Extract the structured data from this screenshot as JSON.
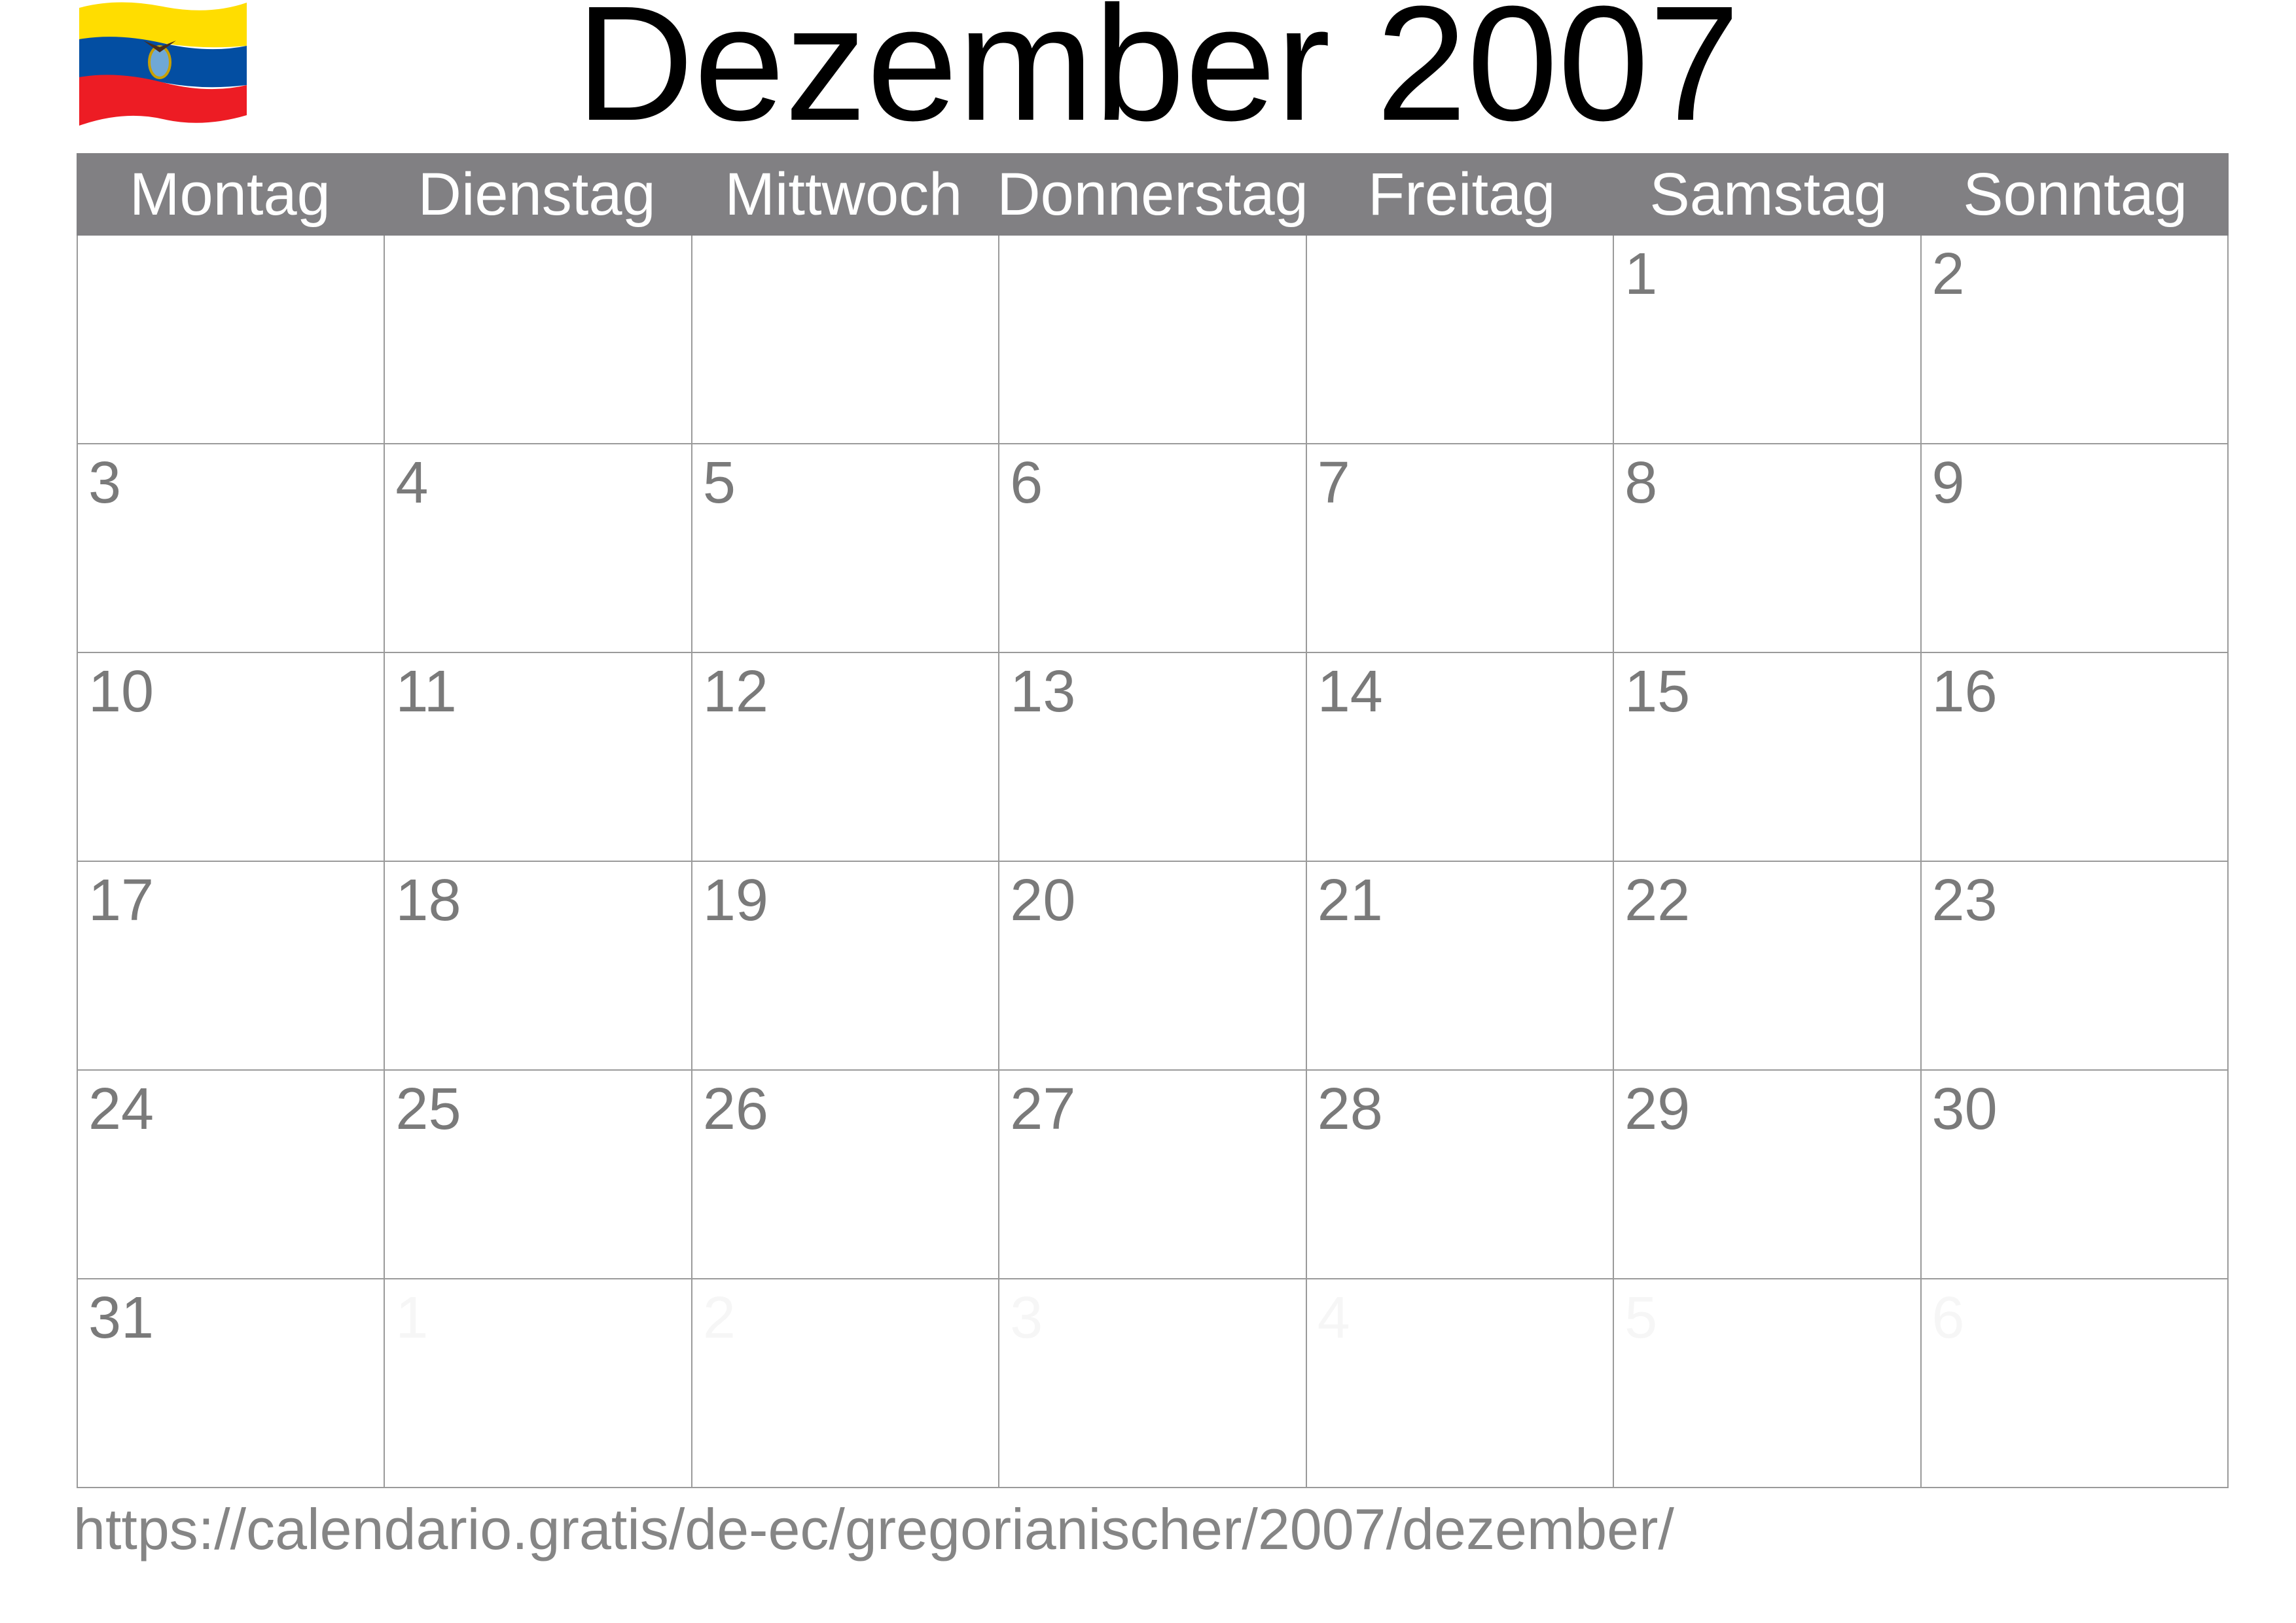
{
  "flag": {
    "country": "Ecuador",
    "colors": [
      "#FFDD00",
      "#034EA2",
      "#ED1C24"
    ]
  },
  "title": "Dezember 2007",
  "weekdays": [
    "Montag",
    "Dienstag",
    "Mittwoch",
    "Donnerstag",
    "Freitag",
    "Samstag",
    "Sonntag"
  ],
  "weeks": [
    [
      {
        "d": ""
      },
      {
        "d": ""
      },
      {
        "d": ""
      },
      {
        "d": ""
      },
      {
        "d": ""
      },
      {
        "d": "1"
      },
      {
        "d": "2"
      }
    ],
    [
      {
        "d": "3"
      },
      {
        "d": "4"
      },
      {
        "d": "5"
      },
      {
        "d": "6"
      },
      {
        "d": "7"
      },
      {
        "d": "8"
      },
      {
        "d": "9"
      }
    ],
    [
      {
        "d": "10"
      },
      {
        "d": "11"
      },
      {
        "d": "12"
      },
      {
        "d": "13"
      },
      {
        "d": "14"
      },
      {
        "d": "15"
      },
      {
        "d": "16"
      }
    ],
    [
      {
        "d": "17"
      },
      {
        "d": "18"
      },
      {
        "d": "19"
      },
      {
        "d": "20"
      },
      {
        "d": "21"
      },
      {
        "d": "22"
      },
      {
        "d": "23"
      }
    ],
    [
      {
        "d": "24"
      },
      {
        "d": "25"
      },
      {
        "d": "26"
      },
      {
        "d": "27"
      },
      {
        "d": "28"
      },
      {
        "d": "29"
      },
      {
        "d": "30"
      }
    ],
    [
      {
        "d": "31"
      },
      {
        "d": "1",
        "other": true
      },
      {
        "d": "2",
        "other": true
      },
      {
        "d": "3",
        "other": true
      },
      {
        "d": "4",
        "other": true
      },
      {
        "d": "5",
        "other": true
      },
      {
        "d": "6",
        "other": true
      }
    ]
  ],
  "footer_url": "https://calendario.gratis/de-ec/gregorianischer/2007/dezember/"
}
